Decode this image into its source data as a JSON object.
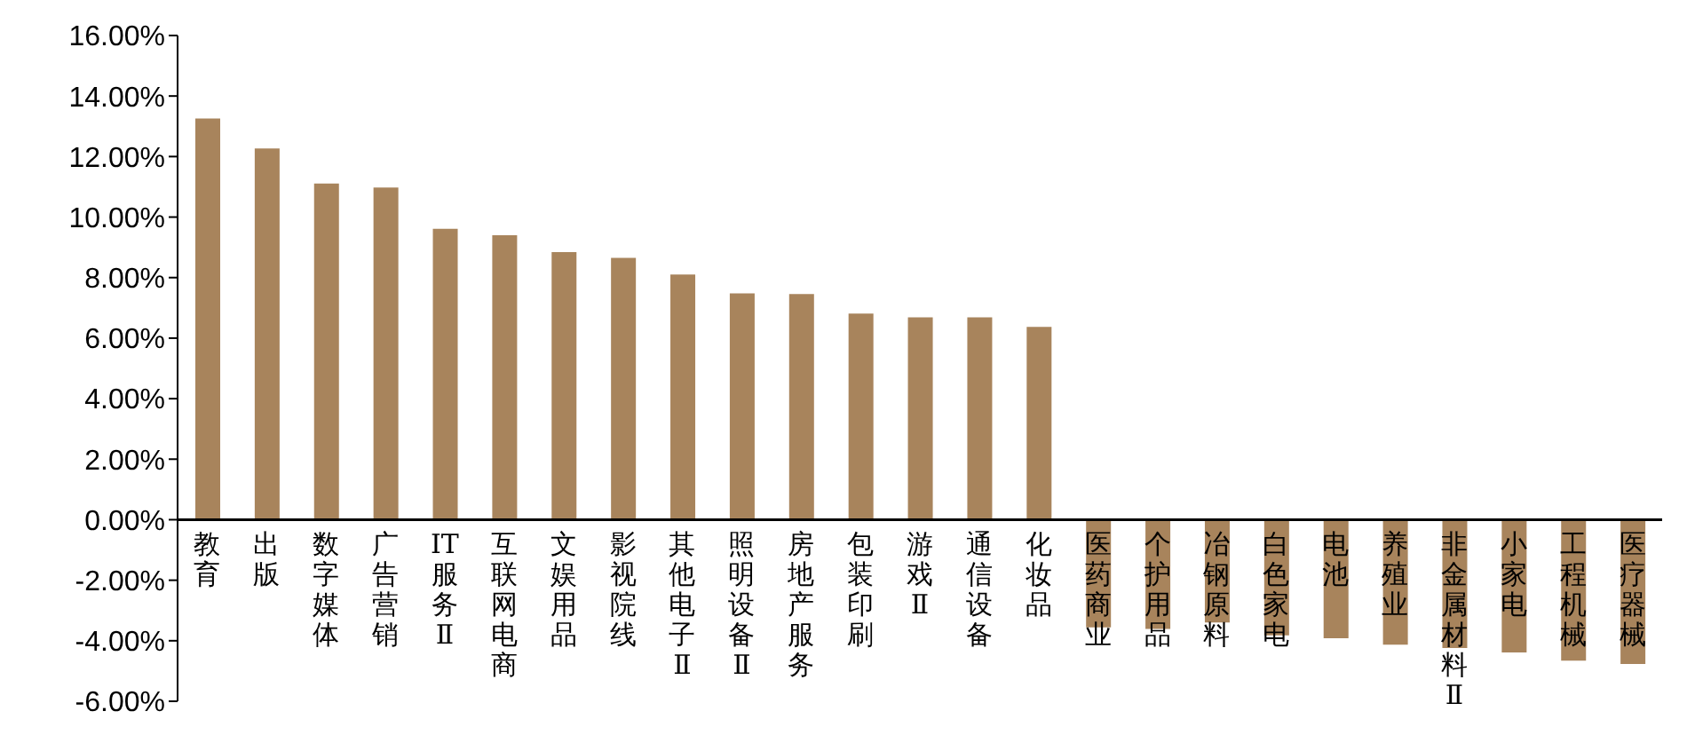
{
  "chart_data": {
    "type": "bar",
    "categories": [
      "教育",
      "出版",
      "数字媒体",
      "广告营销",
      "IT服务Ⅱ",
      "互联网电商",
      "文娱用品",
      "影视院线",
      "其他电子Ⅱ",
      "照明设备Ⅱ",
      "房地产服务",
      "包装印刷",
      "游戏Ⅱ",
      "通信设备",
      "化妆品",
      "医药商业",
      "个护用品",
      "冶钢原料",
      "白色家电",
      "电池",
      "养殖业",
      "非金属材料Ⅱ",
      "小家电",
      "工程机械",
      "医疗器械"
    ],
    "values": [
      13.26,
      12.27,
      11.11,
      10.98,
      9.61,
      9.4,
      8.84,
      8.65,
      8.1,
      7.48,
      7.46,
      6.81,
      6.69,
      6.69,
      6.37,
      -3.56,
      -3.61,
      -3.4,
      -3.82,
      -3.92,
      -4.13,
      -4.24,
      -4.39,
      -4.66,
      -4.77
    ],
    "color": "#a8845c",
    "ylim": [
      -6,
      16
    ],
    "yticks": [
      {
        "value": -6,
        "label": "-6.00%"
      },
      {
        "value": -4,
        "label": "-4.00%"
      },
      {
        "value": -2,
        "label": "-2.00%"
      },
      {
        "value": 0,
        "label": "0.00%"
      },
      {
        "value": 2,
        "label": "2.00%"
      },
      {
        "value": 4,
        "label": "4.00%"
      },
      {
        "value": 6,
        "label": "6.00%"
      },
      {
        "value": 8,
        "label": "8.00%"
      },
      {
        "value": 10,
        "label": "10.00%"
      },
      {
        "value": 12,
        "label": "12.00%"
      },
      {
        "value": 14,
        "label": "14.00%"
      },
      {
        "value": 16,
        "label": "16.00%"
      }
    ],
    "grid": false,
    "legend": false
  }
}
